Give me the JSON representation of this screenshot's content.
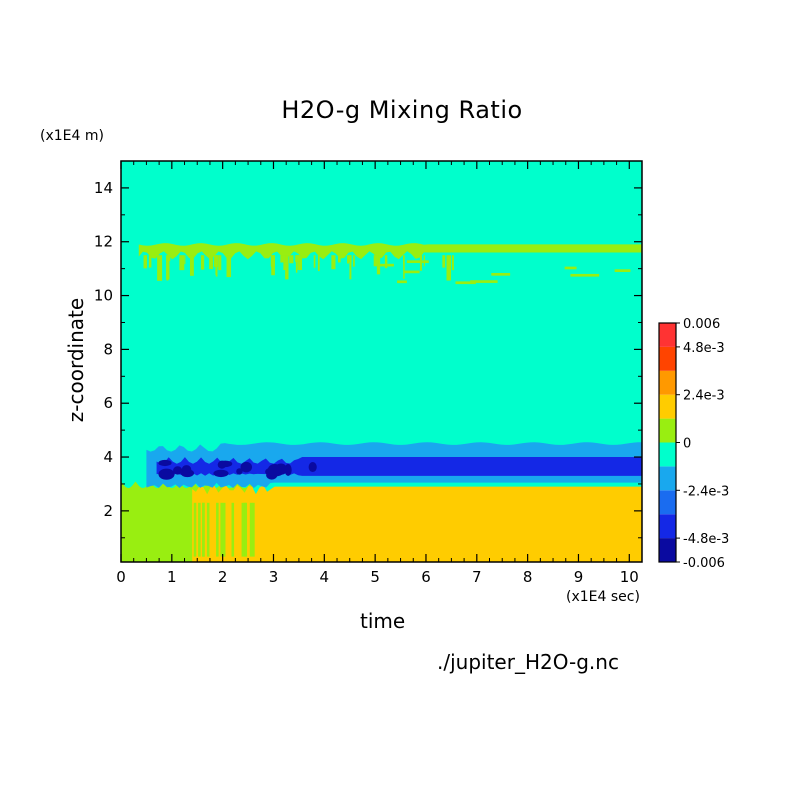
{
  "chart_data": {
    "type": "heatmap",
    "title": "H2O-g Mixing Ratio",
    "xlabel": "time",
    "ylabel": "z-coordinate",
    "x_unit": "(x1E4 sec)",
    "y_unit": "(x1E4 m)",
    "source_file": "./jupiter_H2O-g.nc",
    "xlim": [
      0,
      10.25
    ],
    "ylim": [
      0.1,
      15
    ],
    "x_ticks": [
      "0",
      "1",
      "2",
      "3",
      "4",
      "5",
      "6",
      "7",
      "8",
      "9",
      "10"
    ],
    "y_ticks": [
      "2",
      "4",
      "6",
      "8",
      "10",
      "12",
      "14"
    ],
    "colorbar": {
      "levels": [
        -0.006,
        -0.0048,
        -0.0036,
        -0.0024,
        -0.0012,
        0,
        0.0012,
        0.0024,
        0.0036,
        0.0048,
        0.006
      ],
      "colors": [
        "#0a0aa0",
        "#1428e6",
        "#1a6cf0",
        "#19a8ee",
        "#00ffcc",
        "#99ee11",
        "#ffcc00",
        "#ff9900",
        "#ff4400",
        "#ff3333"
      ],
      "tick_labels": [
        "0.006",
        "4.8e-3",
        "2.4e-3",
        "0",
        "-2.4e-3",
        "-4.8e-3",
        "-0.006"
      ]
    },
    "regions": [
      {
        "name": "background",
        "value": 0,
        "color": "#00ffcc",
        "z_range": [
          0.1,
          15
        ],
        "t_range": [
          0,
          10.25
        ]
      },
      {
        "name": "upper positive band",
        "value": 0.0012,
        "color": "#99ee11",
        "z_range": [
          11.5,
          11.9
        ],
        "t_range": [
          0.35,
          10.25
        ]
      },
      {
        "name": "light-blue layer",
        "value": -0.0012,
        "color": "#19a8ee",
        "z_range": [
          3.0,
          4.5
        ],
        "t_range": [
          0.5,
          10.25
        ]
      },
      {
        "name": "blue layer",
        "value": -0.0036,
        "color": "#1428e6",
        "z_range": [
          3.3,
          4.0
        ],
        "t_range": [
          0.7,
          10.25
        ]
      },
      {
        "name": "dark-blue spots",
        "value": -0.0054,
        "color": "#0a0aa0",
        "z_range": [
          3.3,
          3.8
        ],
        "t_range": [
          0.8,
          3.8
        ]
      },
      {
        "name": "lower orange layer",
        "value": 0.0024,
        "color": "#ffcc00",
        "z_range": [
          0.1,
          2.9
        ],
        "t_range": [
          1.4,
          10.25
        ]
      },
      {
        "name": "early lower green region",
        "value": 0.0012,
        "color": "#99ee11",
        "z_range": [
          0.1,
          3.1
        ],
        "t_range": [
          0,
          1.4
        ]
      }
    ]
  }
}
